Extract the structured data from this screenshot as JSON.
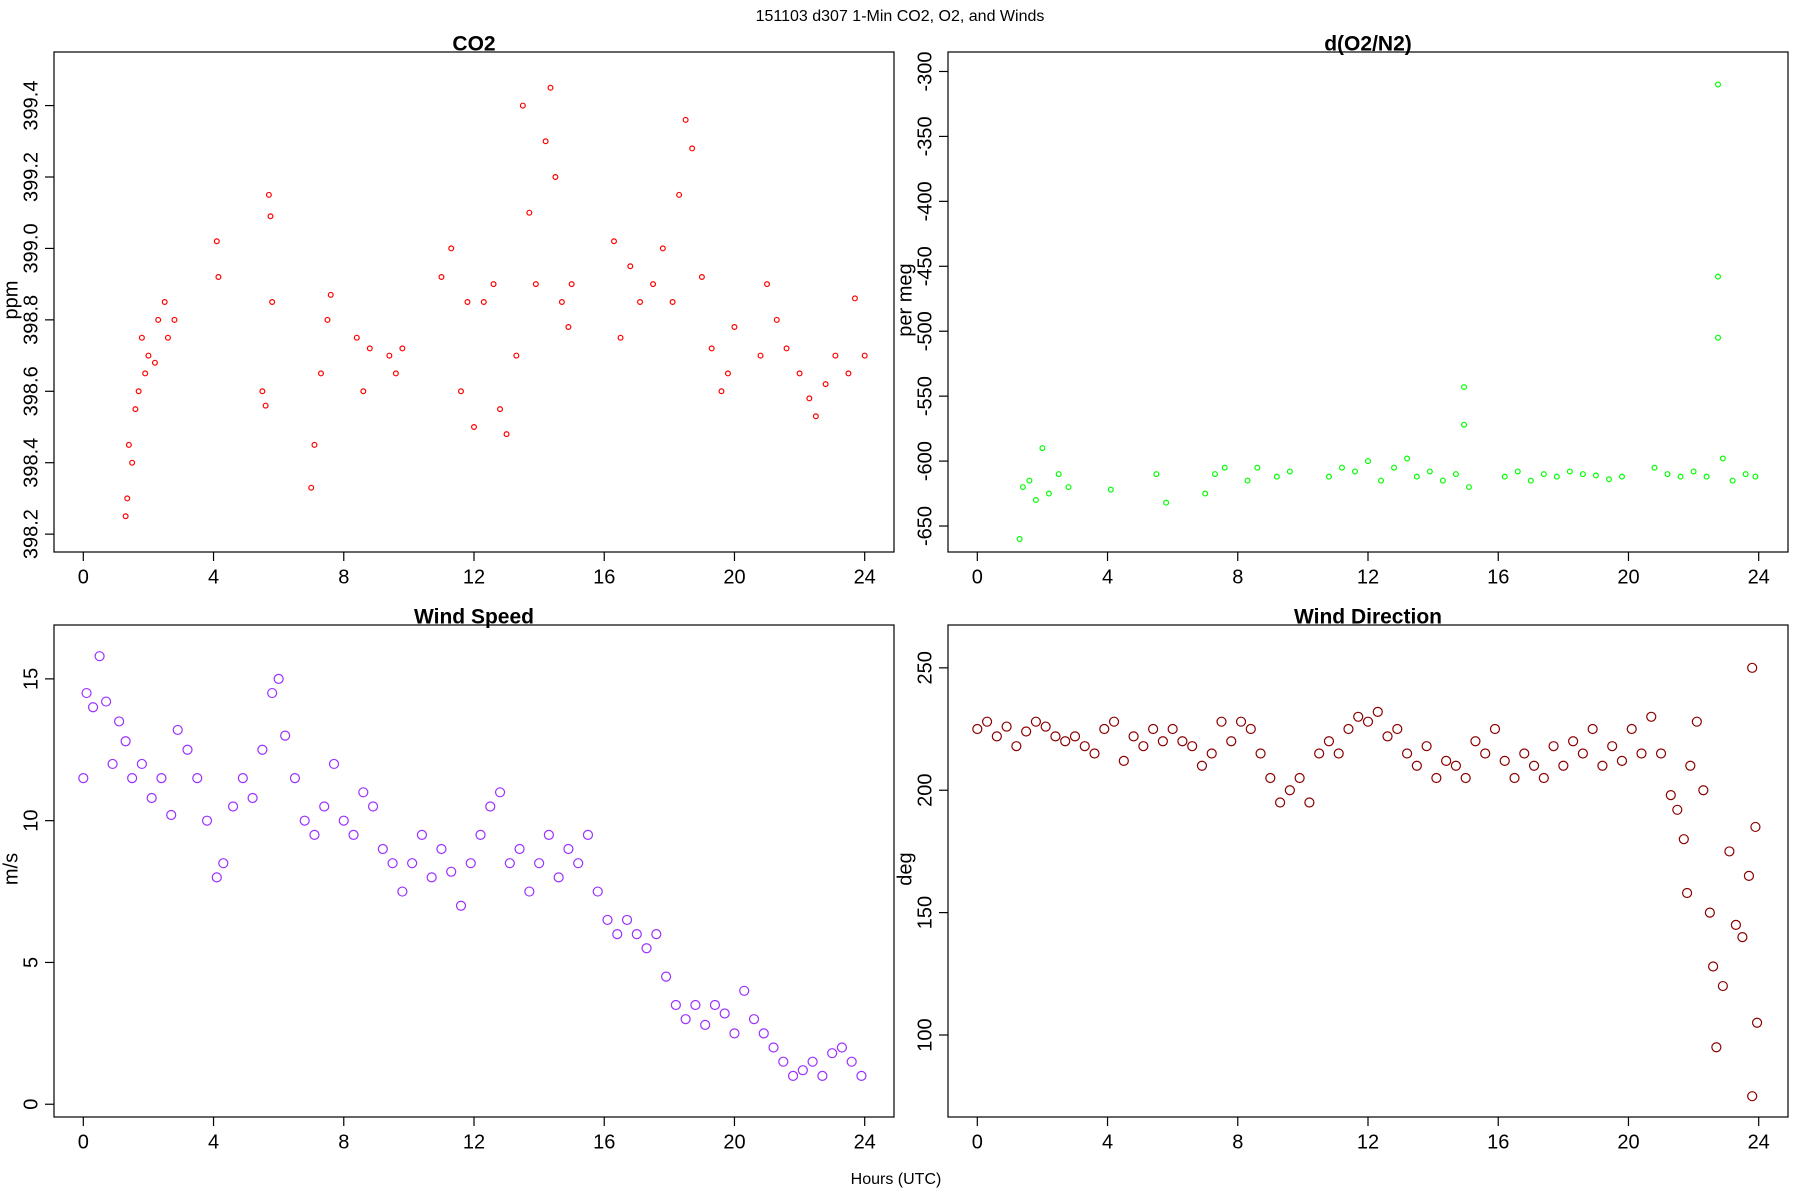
{
  "title": "151103   d307   1-Min CO2, O2, and Winds",
  "xlabel": "Hours (UTC)",
  "chart_data": [
    {
      "type": "scatter",
      "title": "CO2",
      "ylabel": "ppm",
      "color": "#ff0000",
      "marker_size": "small",
      "xlim": [
        -0.9,
        24.9
      ],
      "xticks": [
        0,
        4,
        8,
        12,
        16,
        20,
        24
      ],
      "ylim": [
        398.15,
        399.55
      ],
      "yticks": [
        398.2,
        398.4,
        398.6,
        398.8,
        {
          "value": 399,
          "label": "399.0"
        },
        399.2,
        399.4
      ],
      "x": [
        1.3,
        1.35,
        1.4,
        1.5,
        1.6,
        1.7,
        1.8,
        1.9,
        2.0,
        2.2,
        2.3,
        2.5,
        2.6,
        2.8,
        4.1,
        4.15,
        5.5,
        5.6,
        5.7,
        5.75,
        5.8,
        7.0,
        7.1,
        7.3,
        7.5,
        7.6,
        8.4,
        8.6,
        8.8,
        9.4,
        9.6,
        9.8,
        11.0,
        11.3,
        11.6,
        11.8,
        12.0,
        12.3,
        12.6,
        12.8,
        13.0,
        13.3,
        13.5,
        13.7,
        13.9,
        14.2,
        14.35,
        14.5,
        14.7,
        14.9,
        15.0,
        16.3,
        16.5,
        16.8,
        17.1,
        17.5,
        17.8,
        18.1,
        18.3,
        18.5,
        18.7,
        19.0,
        19.3,
        19.6,
        19.8,
        20.0,
        20.8,
        21.0,
        21.3,
        21.6,
        22.0,
        22.3,
        22.5,
        22.8,
        23.1,
        23.5,
        23.7,
        24.0
      ],
      "values": [
        398.25,
        398.3,
        398.45,
        398.4,
        398.55,
        398.6,
        398.75,
        398.65,
        398.7,
        398.68,
        398.8,
        398.85,
        398.75,
        398.8,
        399.02,
        398.92,
        398.6,
        398.56,
        399.15,
        399.09,
        398.85,
        398.33,
        398.45,
        398.65,
        398.8,
        398.87,
        398.75,
        398.6,
        398.72,
        398.7,
        398.65,
        398.72,
        398.92,
        399.0,
        398.6,
        398.85,
        398.5,
        398.85,
        398.9,
        398.55,
        398.48,
        398.7,
        399.4,
        399.1,
        398.9,
        399.3,
        399.45,
        399.2,
        398.85,
        398.78,
        398.9,
        399.02,
        398.75,
        398.95,
        398.85,
        398.9,
        399.0,
        398.85,
        399.15,
        399.36,
        399.28,
        398.92,
        398.72,
        398.6,
        398.65,
        398.78,
        398.7,
        398.9,
        398.8,
        398.72,
        398.65,
        398.58,
        398.53,
        398.62,
        398.7,
        398.65,
        398.86,
        398.7
      ]
    },
    {
      "type": "scatter",
      "title": "d(O2/N2)",
      "ylabel": "per meg",
      "color": "#00ff00",
      "marker_size": "small",
      "xlim": [
        -0.9,
        24.9
      ],
      "xticks": [
        0,
        4,
        8,
        12,
        16,
        20,
        24
      ],
      "ylim": [
        -670,
        -285
      ],
      "yticks": [
        -650,
        -600,
        -550,
        -500,
        -450,
        -400,
        -350,
        -300
      ],
      "x": [
        1.3,
        1.4,
        1.6,
        1.8,
        2.0,
        2.2,
        2.5,
        2.8,
        4.1,
        5.5,
        5.8,
        7.0,
        7.3,
        7.6,
        8.3,
        8.6,
        9.2,
        9.6,
        10.8,
        11.2,
        11.6,
        12.0,
        12.4,
        12.8,
        13.2,
        13.5,
        13.9,
        14.3,
        14.7,
        14.95,
        14.95,
        15.1,
        16.2,
        16.6,
        17.0,
        17.4,
        17.8,
        18.2,
        18.6,
        19.0,
        19.4,
        19.8,
        20.8,
        21.2,
        21.6,
        22.0,
        22.4,
        22.75,
        22.75,
        22.75,
        22.9,
        23.2,
        23.6,
        23.9
      ],
      "values": [
        -660,
        -620,
        -615,
        -630,
        -590,
        -625,
        -610,
        -620,
        -622,
        -610,
        -632,
        -625,
        -610,
        -605,
        -615,
        -605,
        -612,
        -608,
        -612,
        -605,
        -608,
        -600,
        -615,
        -605,
        -598,
        -612,
        -608,
        -615,
        -610,
        -543,
        -572,
        -620,
        -612,
        -608,
        -615,
        -610,
        -612,
        -608,
        -610,
        -611,
        -614,
        -612,
        -605,
        -610,
        -612,
        -608,
        -612,
        -310,
        -458,
        -505,
        -598,
        -615,
        -610,
        -612
      ]
    },
    {
      "type": "scatter",
      "title": "Wind Speed",
      "ylabel": "m/s",
      "color": "#9b30ff",
      "marker_size": "large",
      "xlim": [
        -0.9,
        24.9
      ],
      "xticks": [
        0,
        4,
        8,
        12,
        16,
        20,
        24
      ],
      "ylim": [
        -0.45,
        16.9
      ],
      "yticks": [
        0,
        5,
        10,
        15
      ],
      "x": [
        0.0,
        0.1,
        0.3,
        0.5,
        0.7,
        0.9,
        1.1,
        1.3,
        1.5,
        1.8,
        2.1,
        2.4,
        2.7,
        2.9,
        3.2,
        3.5,
        3.8,
        4.1,
        4.3,
        4.6,
        4.9,
        5.2,
        5.5,
        5.8,
        6.0,
        6.2,
        6.5,
        6.8,
        7.1,
        7.4,
        7.7,
        8.0,
        8.3,
        8.6,
        8.9,
        9.2,
        9.5,
        9.8,
        10.1,
        10.4,
        10.7,
        11.0,
        11.3,
        11.6,
        11.9,
        12.2,
        12.5,
        12.8,
        13.1,
        13.4,
        13.7,
        14.0,
        14.3,
        14.6,
        14.9,
        15.2,
        15.5,
        15.8,
        16.1,
        16.4,
        16.7,
        17.0,
        17.3,
        17.6,
        17.9,
        18.2,
        18.5,
        18.8,
        19.1,
        19.4,
        19.7,
        20.0,
        20.3,
        20.6,
        20.9,
        21.2,
        21.5,
        21.8,
        22.1,
        22.4,
        22.7,
        23.0,
        23.3,
        23.6,
        23.9
      ],
      "values": [
        11.5,
        14.5,
        14.0,
        15.8,
        14.2,
        12.0,
        13.5,
        12.8,
        11.5,
        12.0,
        10.8,
        11.5,
        10.2,
        13.2,
        12.5,
        11.5,
        10.0,
        8.0,
        8.5,
        10.5,
        11.5,
        10.8,
        12.5,
        14.5,
        15.0,
        13.0,
        11.5,
        10.0,
        9.5,
        10.5,
        12.0,
        10.0,
        9.5,
        11.0,
        10.5,
        9.0,
        8.5,
        7.5,
        8.5,
        9.5,
        8.0,
        9.0,
        8.2,
        7.0,
        8.5,
        9.5,
        10.5,
        11.0,
        8.5,
        9.0,
        7.5,
        8.5,
        9.5,
        8.0,
        9.0,
        8.5,
        9.5,
        7.5,
        6.5,
        6.0,
        6.5,
        6.0,
        5.5,
        6.0,
        4.5,
        3.5,
        3.0,
        3.5,
        2.8,
        3.5,
        3.2,
        2.5,
        4.0,
        3.0,
        2.5,
        2.0,
        1.5,
        1.0,
        1.2,
        1.5,
        1.0,
        1.8,
        2.0,
        1.5,
        1.0
      ]
    },
    {
      "type": "scatter",
      "title": "Wind Direction",
      "ylabel": "deg",
      "color": "#8b0000",
      "marker_size": "large",
      "xlim": [
        -0.9,
        24.9
      ],
      "xticks": [
        0,
        4,
        8,
        12,
        16,
        20,
        24
      ],
      "ylim": [
        66.5,
        267.5
      ],
      "yticks": [
        100,
        150,
        200,
        250
      ],
      "x": [
        0.0,
        0.3,
        0.6,
        0.9,
        1.2,
        1.5,
        1.8,
        2.1,
        2.4,
        2.7,
        3.0,
        3.3,
        3.6,
        3.9,
        4.2,
        4.5,
        4.8,
        5.1,
        5.4,
        5.7,
        6.0,
        6.3,
        6.6,
        6.9,
        7.2,
        7.5,
        7.8,
        8.1,
        8.4,
        8.7,
        9.0,
        9.3,
        9.6,
        9.9,
        10.2,
        10.5,
        10.8,
        11.1,
        11.4,
        11.7,
        12.0,
        12.3,
        12.6,
        12.9,
        13.2,
        13.5,
        13.8,
        14.1,
        14.4,
        14.7,
        15.0,
        15.3,
        15.6,
        15.9,
        16.2,
        16.5,
        16.8,
        17.1,
        17.4,
        17.7,
        18.0,
        18.3,
        18.6,
        18.9,
        19.2,
        19.5,
        19.8,
        20.1,
        20.4,
        20.7,
        21.0,
        21.3,
        21.5,
        21.7,
        21.8,
        21.9,
        22.1,
        22.3,
        22.5,
        22.6,
        22.7,
        22.9,
        23.1,
        23.3,
        23.5,
        23.7,
        23.8,
        23.8,
        23.9,
        23.95
      ],
      "values": [
        225,
        228,
        222,
        226,
        218,
        224,
        228,
        226,
        222,
        220,
        222,
        218,
        215,
        225,
        228,
        212,
        222,
        218,
        225,
        220,
        225,
        220,
        218,
        210,
        215,
        228,
        220,
        228,
        225,
        215,
        205,
        195,
        200,
        205,
        195,
        215,
        220,
        215,
        225,
        230,
        228,
        232,
        222,
        225,
        215,
        210,
        218,
        205,
        212,
        210,
        205,
        220,
        215,
        225,
        212,
        205,
        215,
        210,
        205,
        218,
        210,
        220,
        215,
        225,
        210,
        218,
        212,
        225,
        215,
        230,
        215,
        198,
        192,
        180,
        158,
        210,
        228,
        200,
        150,
        128,
        95,
        120,
        175,
        145,
        140,
        165,
        250,
        75,
        185,
        105
      ]
    }
  ]
}
